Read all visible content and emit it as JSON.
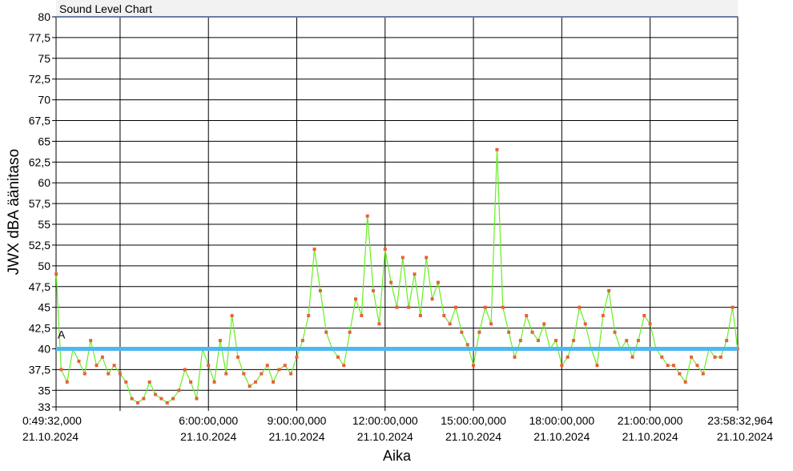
{
  "chart_data": {
    "type": "line",
    "title": "Sound Level Chart",
    "xlabel": "Aika",
    "ylabel": "JWX dBA äänitaso",
    "ylim": [
      33,
      80
    ],
    "xlim_hours": [
      0.825556,
      23.975823
    ],
    "yticks": [
      33,
      35,
      37.5,
      40,
      42.5,
      45,
      47.5,
      50,
      52.5,
      55,
      57.5,
      60,
      62.5,
      65,
      67.5,
      70,
      72.5,
      75,
      77.5,
      80
    ],
    "ytick_labels": [
      "33",
      "35",
      "37,5",
      "40",
      "42,5",
      "45",
      "47,5",
      "50",
      "52,5",
      "55",
      "57,5",
      "60",
      "62,5",
      "65",
      "67,5",
      "70",
      "72,5",
      "75",
      "77,5",
      "80"
    ],
    "xticks": [
      {
        "hours": 0.825556,
        "time": "0:49:32,000",
        "date": "21.10.2024"
      },
      {
        "hours": 3.0,
        "time": "",
        "date": ""
      },
      {
        "hours": 6.0,
        "time": "6:00:00,000",
        "date": "21.10.2024"
      },
      {
        "hours": 9.0,
        "time": "9:00:00,000",
        "date": "21.10.2024"
      },
      {
        "hours": 12.0,
        "time": "12:00:00,000",
        "date": "21.10.2024"
      },
      {
        "hours": 15.0,
        "time": "15:00:00,000",
        "date": "21.10.2024"
      },
      {
        "hours": 18.0,
        "time": "18:00:00,000",
        "date": "21.10.2024"
      },
      {
        "hours": 21.0,
        "time": "21:00:00,000",
        "date": "21.10.2024"
      },
      {
        "hours": 23.975823,
        "time": "23:58:32,964",
        "date": "21.10.2024"
      }
    ],
    "threshold": {
      "label": "A",
      "value": 40,
      "color": "#4db8f0"
    },
    "grid": true,
    "colors": {
      "line": "#66ee22",
      "marker": "#e8603c",
      "background": "#ffffff"
    },
    "series": [
      {
        "name": "",
        "x": [
          0.83,
          1.0,
          1.2,
          1.4,
          1.6,
          1.8,
          2.0,
          2.2,
          2.4,
          2.6,
          2.8,
          3.0,
          3.2,
          3.4,
          3.6,
          3.8,
          4.0,
          4.2,
          4.4,
          4.6,
          4.8,
          5.0,
          5.2,
          5.4,
          5.6,
          5.8,
          6.0,
          6.2,
          6.4,
          6.6,
          6.8,
          7.0,
          7.2,
          7.4,
          7.6,
          7.8,
          8.0,
          8.2,
          8.4,
          8.6,
          8.8,
          9.0,
          9.2,
          9.4,
          9.6,
          9.8,
          10.0,
          10.2,
          10.4,
          10.6,
          10.8,
          11.0,
          11.2,
          11.4,
          11.6,
          11.8,
          12.0,
          12.2,
          12.4,
          12.6,
          12.8,
          13.0,
          13.2,
          13.4,
          13.6,
          13.8,
          14.0,
          14.2,
          14.4,
          14.6,
          14.8,
          15.0,
          15.2,
          15.4,
          15.6,
          15.8,
          16.0,
          16.2,
          16.4,
          16.6,
          16.8,
          17.0,
          17.2,
          17.4,
          17.6,
          17.8,
          18.0,
          18.2,
          18.4,
          18.6,
          18.8,
          19.0,
          19.2,
          19.4,
          19.6,
          19.8,
          20.0,
          20.2,
          20.4,
          20.6,
          20.8,
          21.0,
          21.2,
          21.4,
          21.6,
          21.8,
          22.0,
          22.2,
          22.4,
          22.6,
          22.8,
          23.0,
          23.2,
          23.4,
          23.6,
          23.8,
          23.97
        ],
        "y": [
          49,
          37.5,
          36,
          40,
          38.5,
          37,
          41,
          38,
          39,
          37,
          38,
          37,
          36,
          34,
          33.5,
          34,
          36,
          34.5,
          34,
          33.5,
          34,
          35,
          37.5,
          36,
          34,
          40,
          38,
          36,
          41,
          37,
          44,
          39,
          37,
          35.5,
          36,
          37,
          38,
          36,
          37.5,
          38,
          37,
          39,
          41,
          44,
          52,
          47,
          42,
          40,
          39,
          38,
          42,
          46,
          44,
          56,
          47,
          43,
          52,
          48,
          45,
          51,
          45,
          49,
          44,
          51,
          46,
          48,
          44,
          43,
          45,
          42,
          40.5,
          38,
          42,
          45,
          43,
          64,
          45,
          42,
          39,
          41,
          44,
          42,
          41,
          43,
          40,
          41,
          38,
          39,
          41,
          45,
          43,
          40,
          38,
          44,
          47,
          42,
          40,
          41,
          39,
          41,
          44,
          43,
          40,
          39,
          38,
          38,
          37,
          36,
          39,
          38,
          37,
          40,
          39,
          39,
          41,
          45,
          40
        ]
      }
    ]
  }
}
